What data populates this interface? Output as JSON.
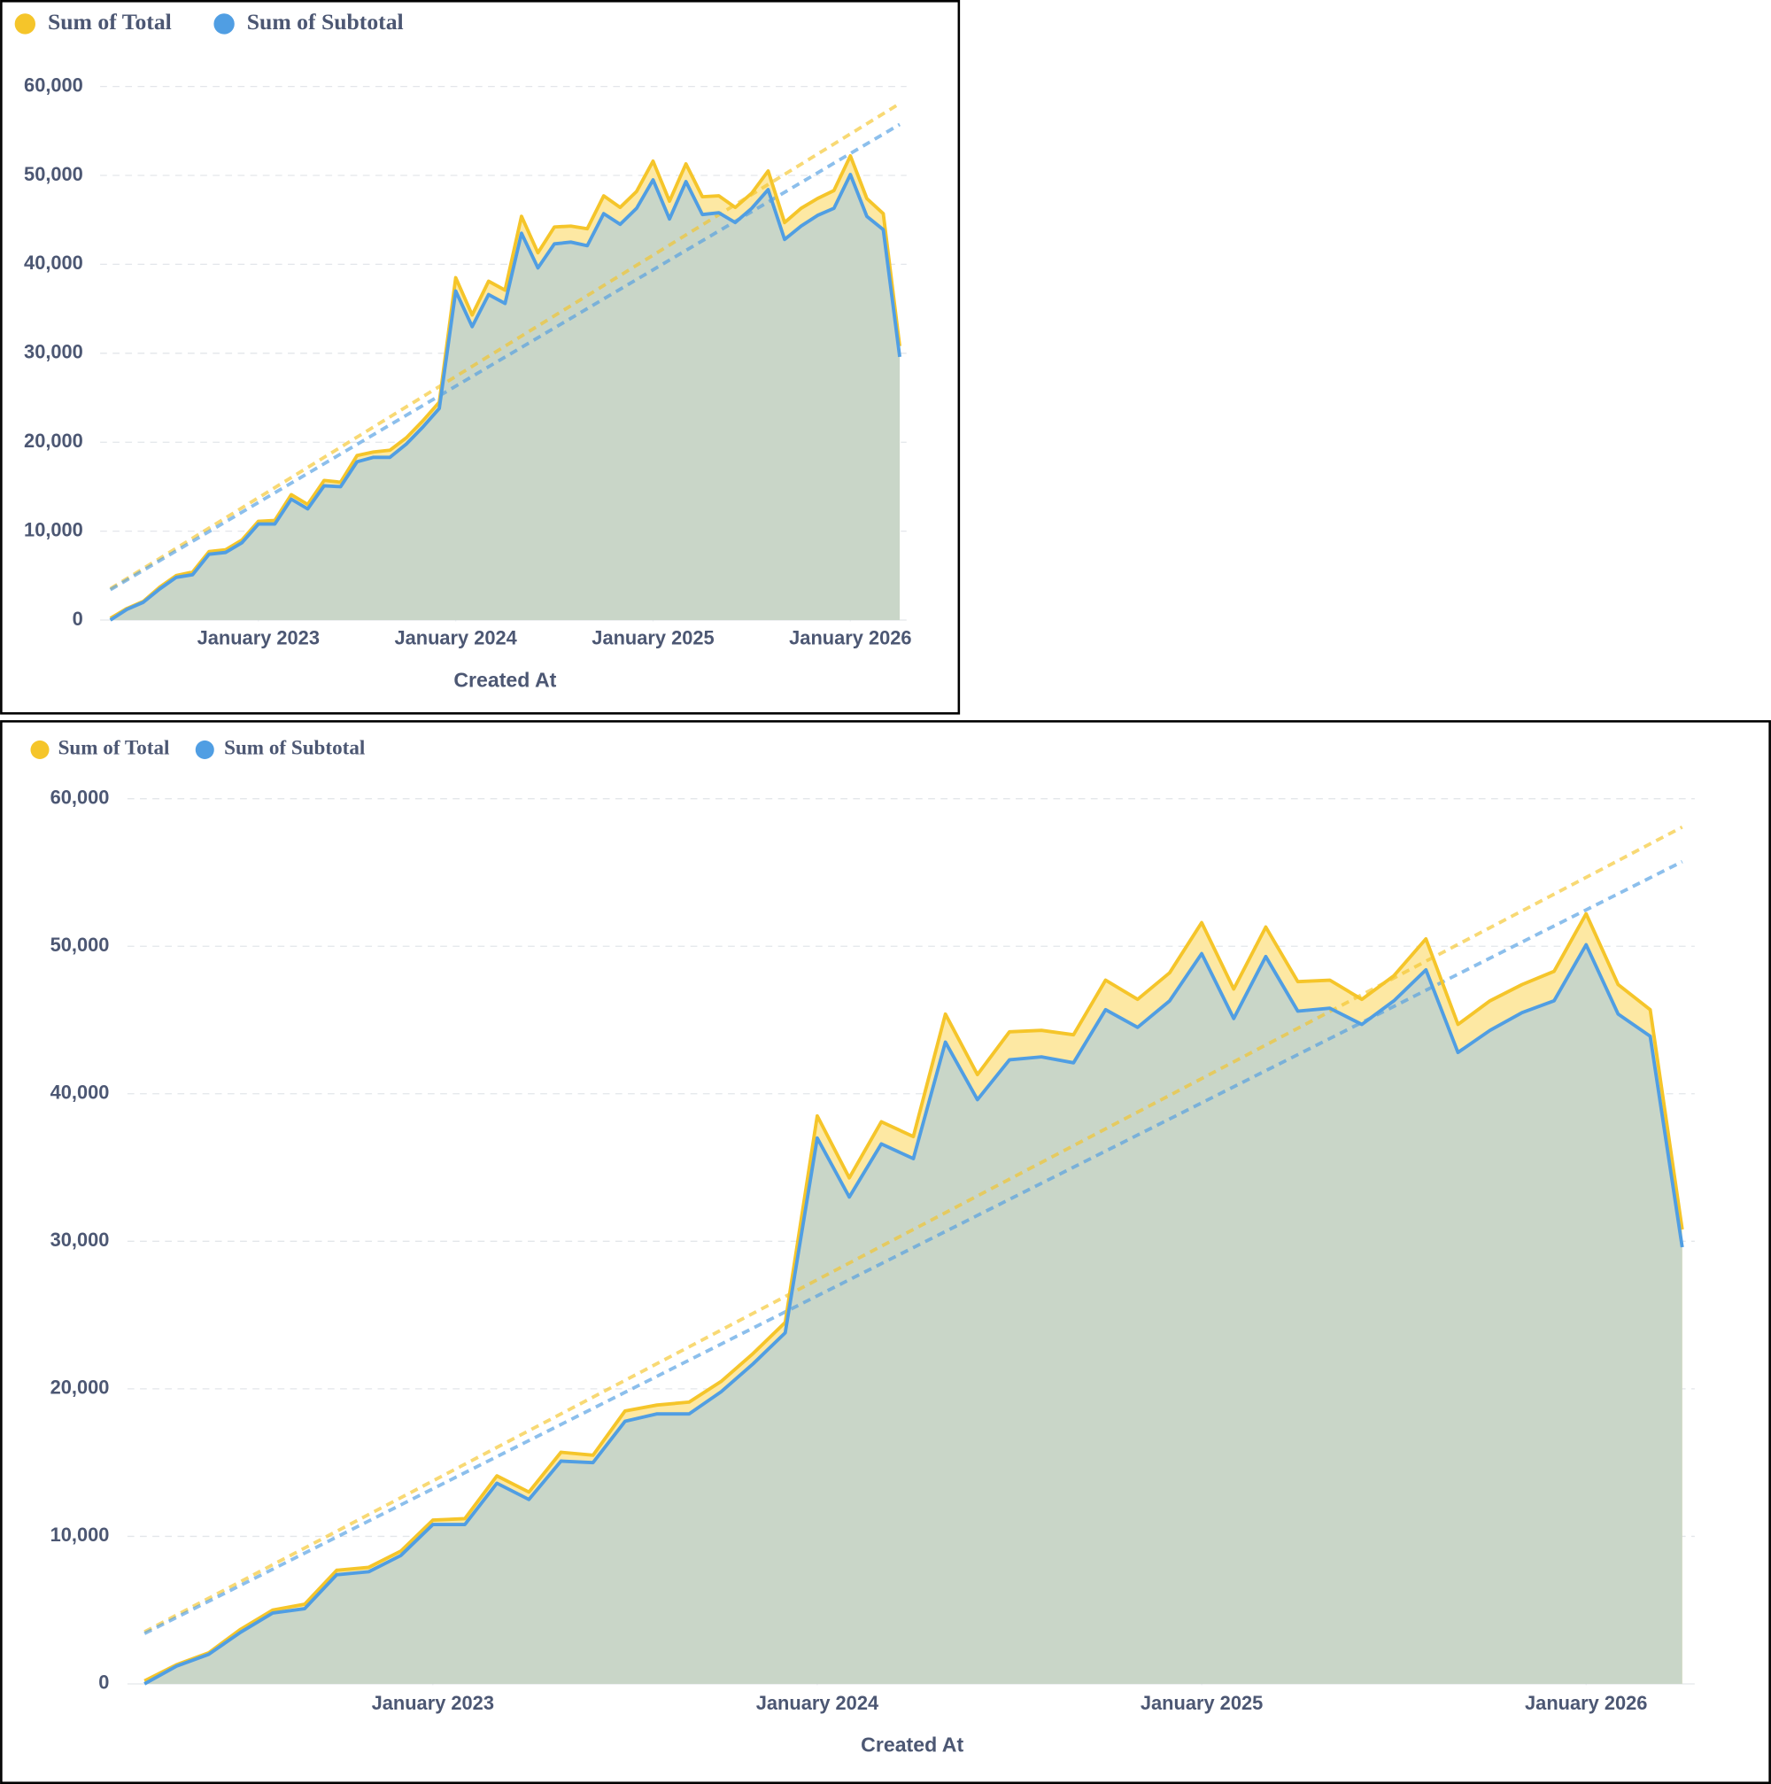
{
  "chart_data": [
    {
      "type": "area",
      "x_label": "Created At",
      "legend": "top-left",
      "grid": true,
      "x": [
        "2022-04",
        "2022-05",
        "2022-06",
        "2022-07",
        "2022-08",
        "2022-09",
        "2022-10",
        "2022-11",
        "2022-12",
        "2023-01",
        "2023-02",
        "2023-03",
        "2023-04",
        "2023-05",
        "2023-06",
        "2023-07",
        "2023-08",
        "2023-09",
        "2023-10",
        "2023-11",
        "2023-12",
        "2024-01",
        "2024-02",
        "2024-03",
        "2024-04",
        "2024-05",
        "2024-06",
        "2024-07",
        "2024-08",
        "2024-09",
        "2024-10",
        "2024-11",
        "2024-12",
        "2025-01",
        "2025-02",
        "2025-03",
        "2025-04",
        "2025-05",
        "2025-06",
        "2025-07",
        "2025-08",
        "2025-09",
        "2025-10",
        "2025-11",
        "2025-12",
        "2026-01",
        "2026-02",
        "2026-03",
        "2026-04"
      ],
      "xlim": [
        "2022-04",
        "2026-04"
      ],
      "xticks": [
        {
          "value": "2023-01",
          "label": "January 2023"
        },
        {
          "value": "2024-01",
          "label": "January 2024"
        },
        {
          "value": "2025-01",
          "label": "January 2025"
        },
        {
          "value": "2026-01",
          "label": "January 2026"
        }
      ],
      "ylim": [
        0,
        60000
      ],
      "yticks": [
        0,
        {
          "value": 10000,
          "label": "10,000"
        },
        {
          "value": 20000,
          "label": "20,000"
        },
        {
          "value": 30000,
          "label": "30,000"
        },
        {
          "value": 40000,
          "label": "40,000"
        },
        {
          "value": 50000,
          "label": "50,000"
        },
        {
          "value": 60000,
          "label": "60,000"
        }
      ],
      "series": [
        {
          "name": "Sum of Total",
          "color": "#f5c52a",
          "values": [
            200,
            1300,
            2100,
            3700,
            5000,
            5400,
            7700,
            7900,
            9000,
            11100,
            11200,
            14100,
            13000,
            15700,
            15500,
            18500,
            18900,
            19100,
            20500,
            22400,
            24500,
            38500,
            34300,
            38100,
            37100,
            45400,
            41300,
            44200,
            44300,
            44000,
            47700,
            46400,
            48200,
            51600,
            47100,
            51300,
            47600,
            47700,
            46400,
            48000,
            50500,
            44700,
            46300,
            47400,
            48300,
            52200,
            47400,
            45700,
            30800
          ]
        },
        {
          "name": "Sum of Subtotal",
          "color": "#509ee3",
          "values": [
            0,
            1200,
            2000,
            3500,
            4800,
            5100,
            7400,
            7600,
            8700,
            10800,
            10800,
            13600,
            12500,
            15100,
            15000,
            17800,
            18300,
            18300,
            19800,
            21700,
            23800,
            37000,
            33000,
            36600,
            35600,
            43500,
            39600,
            42300,
            42500,
            42100,
            45700,
            44500,
            46300,
            49500,
            45100,
            49300,
            45600,
            45800,
            44700,
            46300,
            48400,
            42800,
            44300,
            45500,
            46300,
            50100,
            45400,
            43900,
            29600
          ]
        }
      ]
    },
    {
      "type": "area",
      "x_label": "Created At",
      "legend": "top-left",
      "grid": true,
      "x": [
        "2022-04",
        "2022-05",
        "2022-06",
        "2022-07",
        "2022-08",
        "2022-09",
        "2022-10",
        "2022-11",
        "2022-12",
        "2023-01",
        "2023-02",
        "2023-03",
        "2023-04",
        "2023-05",
        "2023-06",
        "2023-07",
        "2023-08",
        "2023-09",
        "2023-10",
        "2023-11",
        "2023-12",
        "2024-01",
        "2024-02",
        "2024-03",
        "2024-04",
        "2024-05",
        "2024-06",
        "2024-07",
        "2024-08",
        "2024-09",
        "2024-10",
        "2024-11",
        "2024-12",
        "2025-01",
        "2025-02",
        "2025-03",
        "2025-04",
        "2025-05",
        "2025-06",
        "2025-07",
        "2025-08",
        "2025-09",
        "2025-10",
        "2025-11",
        "2025-12",
        "2026-01",
        "2026-02",
        "2026-03",
        "2026-04"
      ],
      "xlim": [
        "2022-04",
        "2026-04"
      ],
      "xticks": [
        {
          "value": "2023-01",
          "label": "January 2023"
        },
        {
          "value": "2024-01",
          "label": "January 2024"
        },
        {
          "value": "2025-01",
          "label": "January 2025"
        },
        {
          "value": "2026-01",
          "label": "January 2026"
        }
      ],
      "ylim": [
        0,
        60000
      ],
      "yticks": [
        0,
        {
          "value": 10000,
          "label": "10,000"
        },
        {
          "value": 20000,
          "label": "20,000"
        },
        {
          "value": 30000,
          "label": "30,000"
        },
        {
          "value": 40000,
          "label": "40,000"
        },
        {
          "value": 50000,
          "label": "50,000"
        },
        {
          "value": 60000,
          "label": "60,000"
        }
      ],
      "series": [
        {
          "name": "Sum of Total",
          "color": "#f5c52a",
          "values": [
            200,
            1300,
            2100,
            3700,
            5000,
            5400,
            7700,
            7900,
            9000,
            11100,
            11200,
            14100,
            13000,
            15700,
            15500,
            18500,
            18900,
            19100,
            20500,
            22400,
            24500,
            38500,
            34300,
            38100,
            37100,
            45400,
            41300,
            44200,
            44300,
            44000,
            47700,
            46400,
            48200,
            51600,
            47100,
            51300,
            47600,
            47700,
            46400,
            48000,
            50500,
            44700,
            46300,
            47400,
            48300,
            52200,
            47400,
            45700,
            30800
          ]
        },
        {
          "name": "Sum of Subtotal",
          "color": "#509ee3",
          "values": [
            0,
            1200,
            2000,
            3500,
            4800,
            5100,
            7400,
            7600,
            8700,
            10800,
            10800,
            13600,
            12500,
            15100,
            15000,
            17800,
            18300,
            18300,
            19800,
            21700,
            23800,
            37000,
            33000,
            36600,
            35600,
            43500,
            39600,
            42300,
            42500,
            42100,
            45700,
            44500,
            46300,
            49500,
            45100,
            49300,
            45600,
            45800,
            44700,
            46300,
            48400,
            42800,
            44300,
            45500,
            46300,
            50100,
            45400,
            43900,
            29600
          ]
        }
      ]
    }
  ]
}
